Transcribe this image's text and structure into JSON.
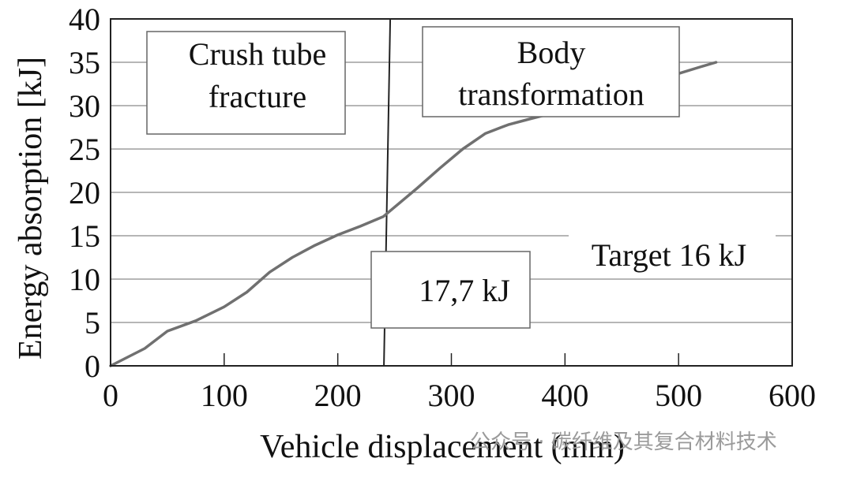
{
  "chart_data": {
    "type": "line",
    "xlabel": "Vehicle displacement (mm)",
    "ylabel": "Energy absorption [kJ]",
    "xlim": [
      0,
      600
    ],
    "ylim": [
      0,
      40
    ],
    "x_ticks": [
      0,
      100,
      200,
      300,
      400,
      500,
      600
    ],
    "y_ticks": [
      0,
      5,
      10,
      15,
      20,
      25,
      30,
      35,
      40
    ],
    "grid": "horizontal",
    "series": [
      {
        "color": "#707070",
        "x": [
          0,
          15,
          30,
          50,
          75,
          100,
          120,
          140,
          160,
          180,
          200,
          220,
          240,
          250,
          270,
          290,
          310,
          330,
          350,
          370,
          385,
          400,
          420,
          440,
          460,
          480,
          500,
          520,
          533
        ],
        "y": [
          0,
          1,
          2,
          4,
          5.2,
          6.8,
          8.5,
          10.8,
          12.5,
          13.9,
          15.1,
          16.1,
          17.2,
          18.3,
          20.5,
          22.8,
          25,
          26.8,
          27.8,
          28.5,
          29,
          29.7,
          30.5,
          31.3,
          32.1,
          32.9,
          33.7,
          34.5,
          35
        ]
      }
    ],
    "vertical_line_x": 242,
    "annotations": [
      {
        "id": "crush",
        "text": [
          "Crush tube",
          "fracture"
        ]
      },
      {
        "id": "body",
        "text": [
          "Body",
          "transformation"
        ]
      },
      {
        "id": "value",
        "text": [
          "17,7 kJ"
        ]
      },
      {
        "id": "target",
        "text": [
          "Target 16 kJ"
        ]
      }
    ]
  },
  "watermark": "公众号 · 碳纤维及其复合材料技术"
}
